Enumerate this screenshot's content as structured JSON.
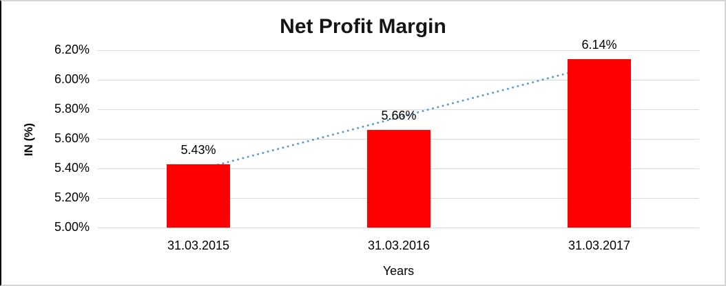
{
  "chart_data": {
    "type": "bar",
    "title": "Net Profit Margin",
    "xlabel": "Years",
    "ylabel": "IN (%)",
    "categories": [
      "31.03.2015",
      "31.03.2016",
      "31.03.2017"
    ],
    "values": [
      5.43,
      5.66,
      6.14
    ],
    "data_labels": [
      "5.43%",
      "5.66%",
      "6.14%"
    ],
    "ylim": [
      5.0,
      6.2
    ],
    "ytick_step": 0.2,
    "ytick_labels": [
      "5.00%",
      "5.20%",
      "5.40%",
      "5.60%",
      "5.80%",
      "6.00%",
      "6.20%"
    ],
    "grid": true,
    "legend": "none",
    "bar_color": "#ff0000",
    "gridline_color": "#d9d9d9",
    "trendline": {
      "type": "linear",
      "style": "dotted",
      "color": "#5b9bd5",
      "start_value": 5.39,
      "end_value": 6.1
    }
  }
}
